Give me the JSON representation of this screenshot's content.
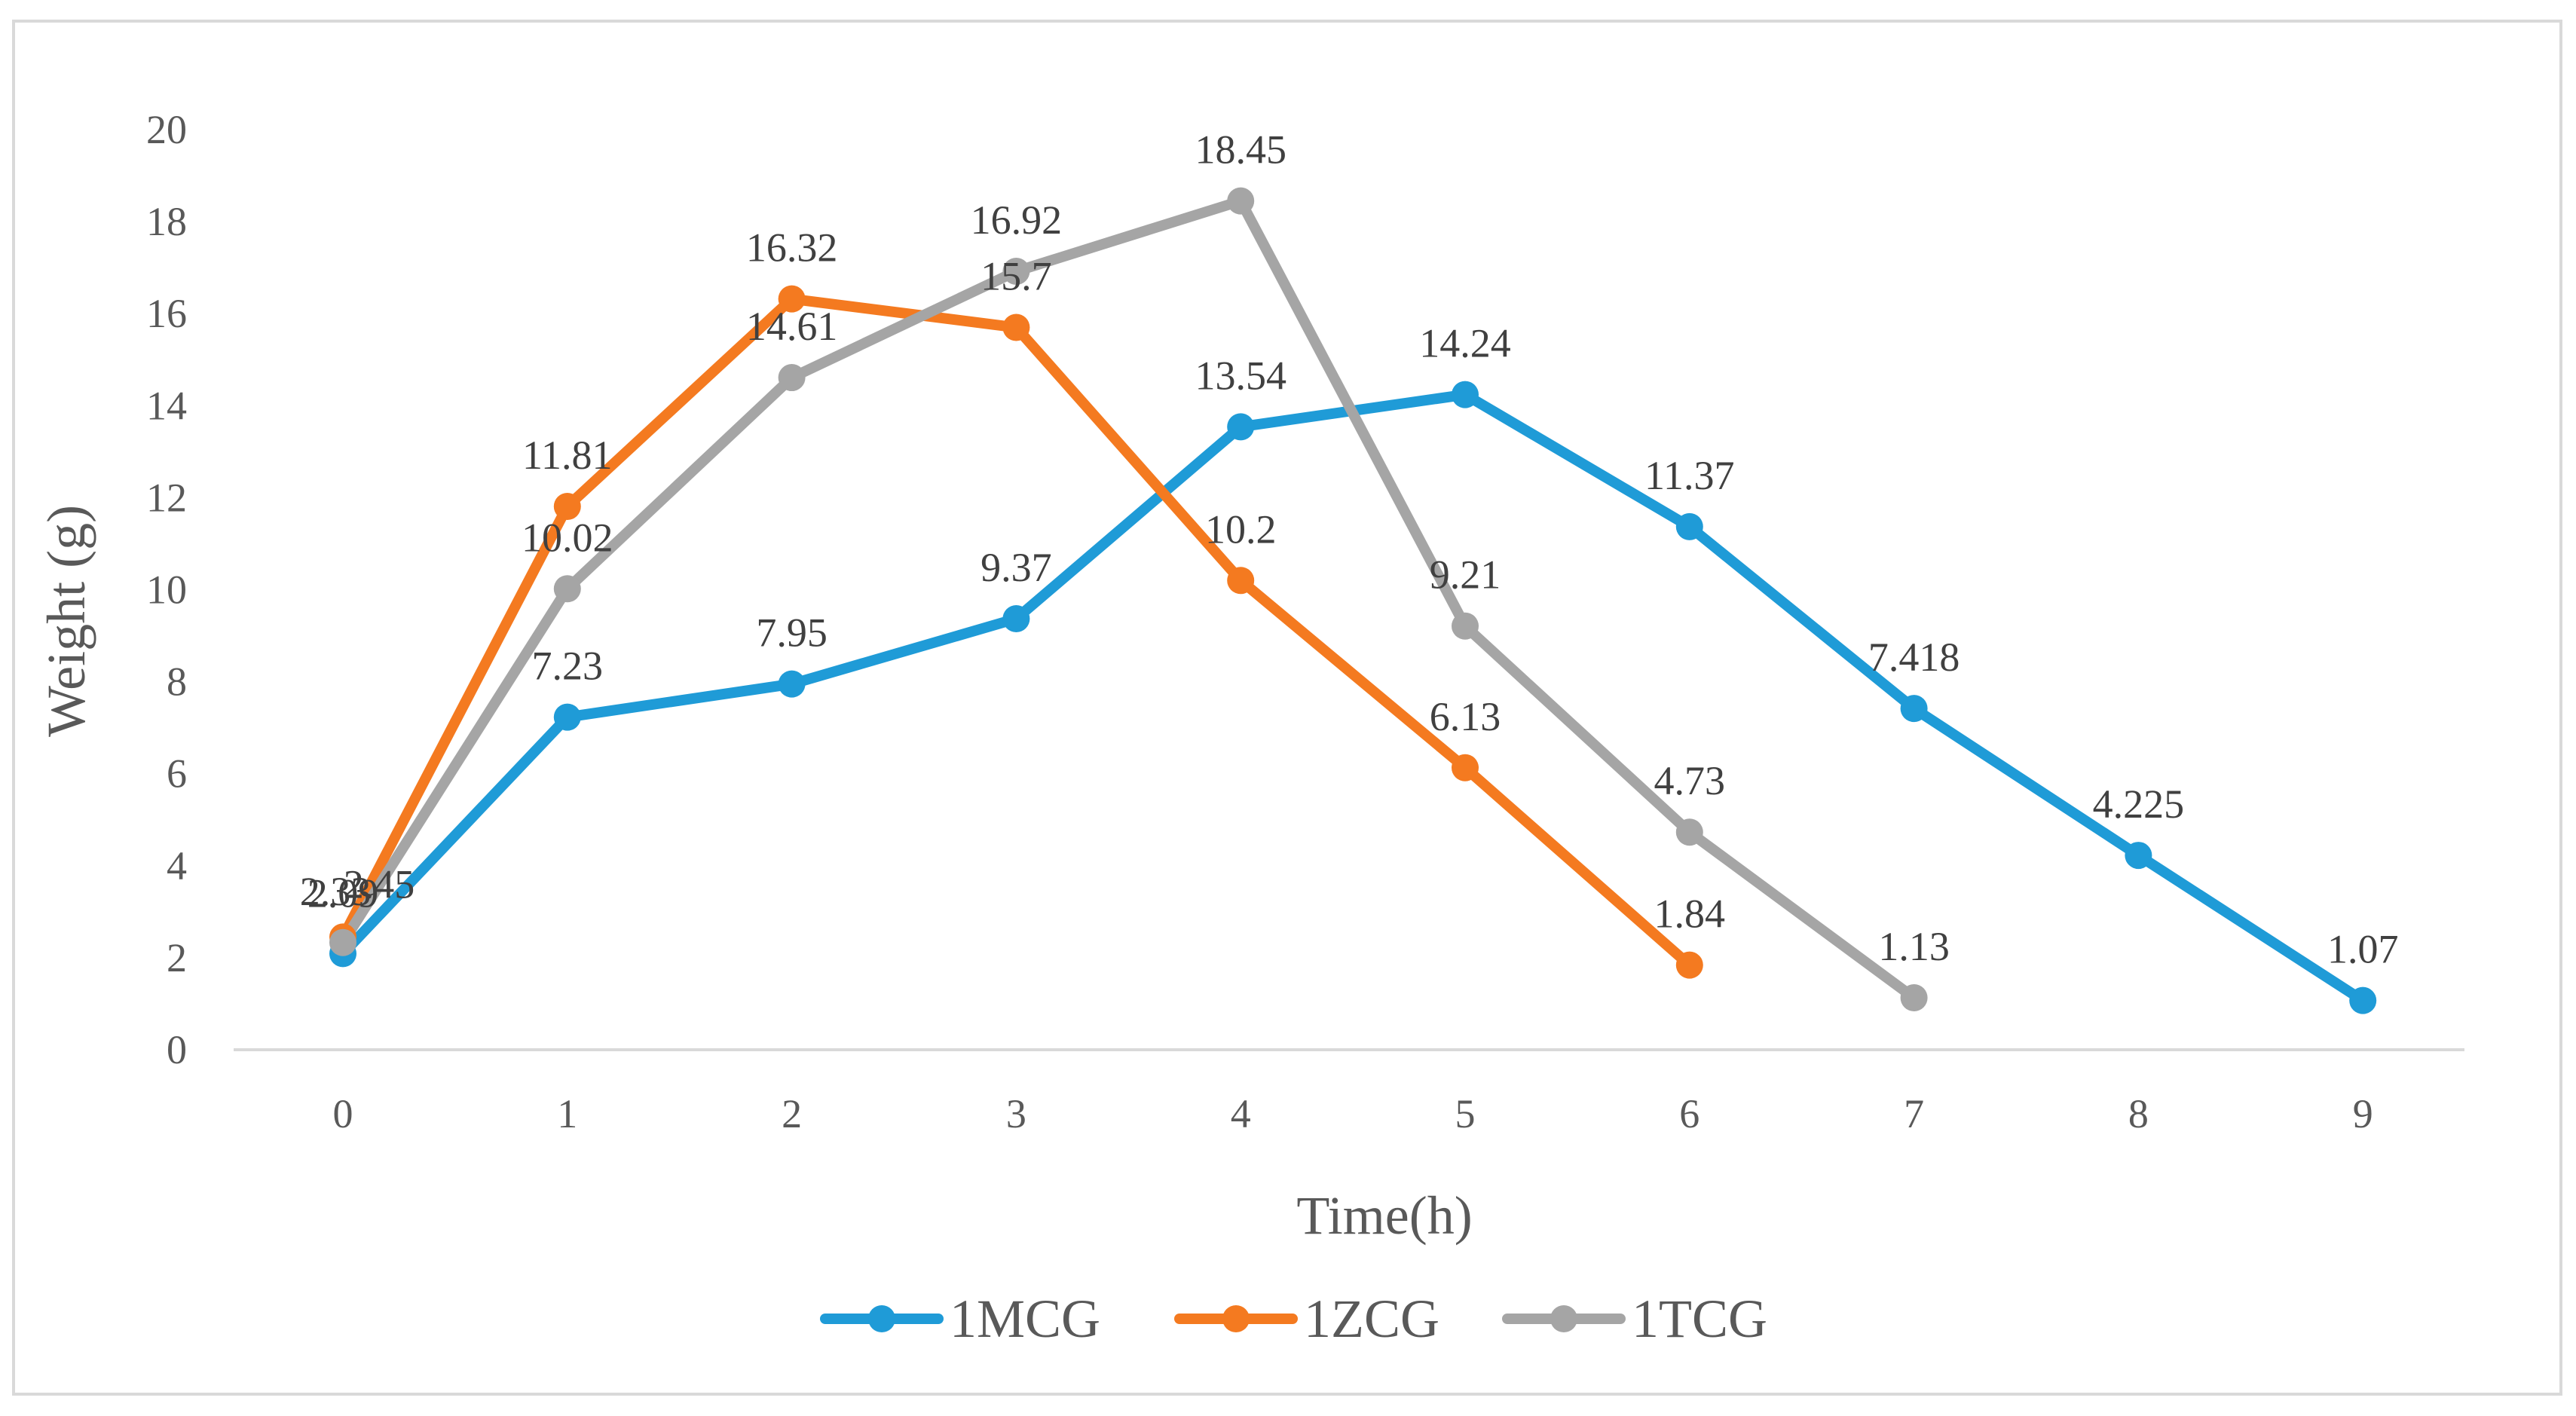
{
  "chart_data": {
    "type": "line",
    "title": "",
    "xlabel": "Time(h)",
    "ylabel": "Weight (g)",
    "ylim": [
      0,
      20
    ],
    "yticks": [
      0,
      2,
      4,
      6,
      8,
      10,
      12,
      14,
      16,
      18,
      20
    ],
    "x": [
      0,
      1,
      2,
      3,
      4,
      5,
      6,
      7,
      8,
      9
    ],
    "grid": false,
    "legend_position": "bottom",
    "series": [
      {
        "name": "1MCG",
        "color": "#1F9BD7",
        "x": [
          0,
          1,
          2,
          3,
          4,
          5,
          6,
          7,
          8,
          9
        ],
        "values": [
          2.09,
          7.23,
          7.95,
          9.37,
          13.54,
          14.24,
          11.37,
          7.418,
          4.225,
          1.07
        ],
        "labels": [
          "2.09",
          "7.23",
          "7.95",
          "9.37",
          "13.54",
          "14.24",
          "11.37",
          "7.418",
          "4.225",
          "1.07"
        ]
      },
      {
        "name": "1ZCG",
        "color": "#F47A20",
        "x": [
          0,
          1,
          2,
          3,
          4,
          5,
          6
        ],
        "values": [
          2.45,
          11.81,
          16.32,
          15.7,
          10.2,
          6.13,
          1.84
        ],
        "labels": [
          "2.45",
          "11.81",
          "16.32",
          "15.7",
          "10.2",
          "6.13",
          "1.84"
        ]
      },
      {
        "name": "1TCG",
        "color": "#A5A5A5",
        "x": [
          0,
          1,
          2,
          3,
          4,
          5,
          6,
          7
        ],
        "values": [
          2.33,
          10.02,
          14.61,
          16.92,
          18.45,
          9.21,
          4.73,
          1.13
        ],
        "labels": [
          "2.33",
          "10.02",
          "14.61",
          "16.92",
          "18.45",
          "9.21",
          "4.73",
          "1.13"
        ]
      }
    ]
  }
}
